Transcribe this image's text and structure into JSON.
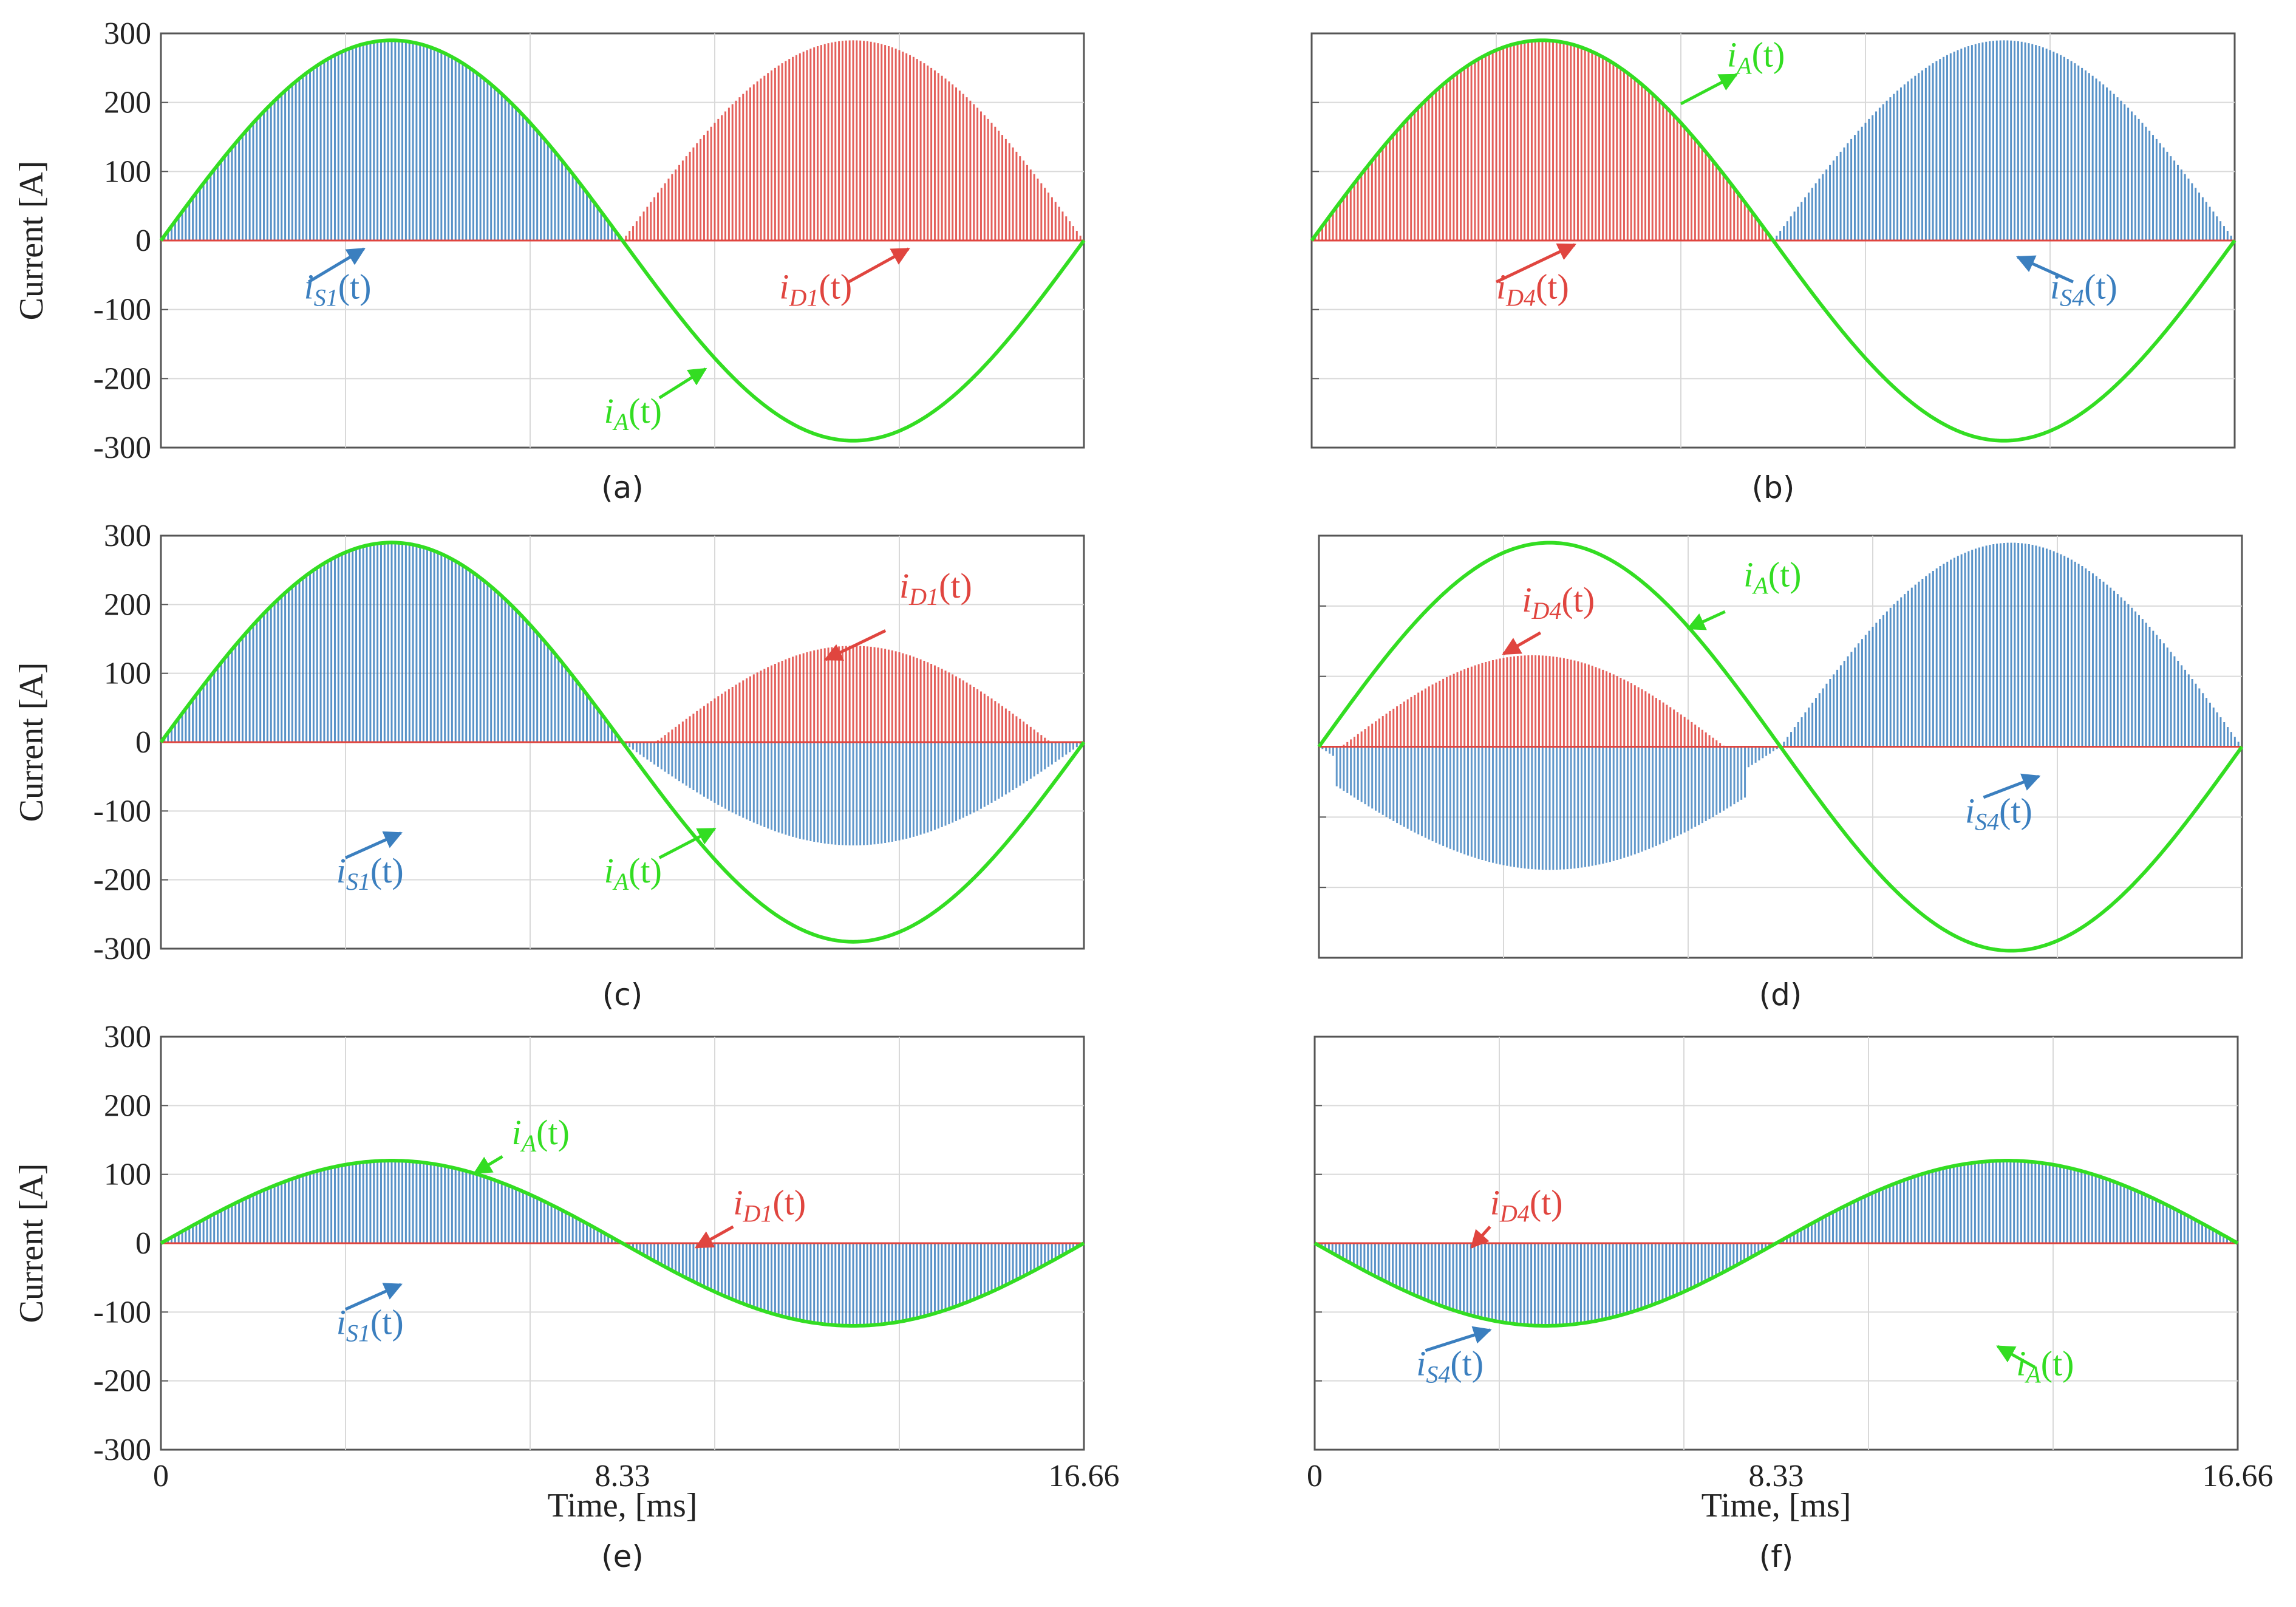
{
  "figure": {
    "x_axis_label": "Time, [ms]",
    "y_axis_label": "Current [A]"
  },
  "colors": {
    "switch_blue": "#3b7fbf",
    "diode_red": "#e0453f",
    "phase_green": "#33dd22",
    "grid": "#d9d9d9",
    "frame": "#555555"
  },
  "chart_data": [
    {
      "id": "a",
      "caption": "(a)",
      "type": "line",
      "title": "",
      "xlabel": "",
      "ylabel": "Current [A]",
      "xlim": [
        0,
        16.66
      ],
      "ylim": [
        -300,
        300
      ],
      "yticks": [
        "300",
        "200",
        "100",
        "0",
        "-100",
        "-200",
        "-300"
      ],
      "xticks": [],
      "peak_phase": 290,
      "peak_pos_region": 290,
      "peak_neg_region": 0,
      "pos_region_label": "S1",
      "pos_region_kind": "switch",
      "neg_region_label": "D1",
      "neg_region_kind": "diode",
      "series": [
        {
          "name": "iA(t)",
          "color": "green",
          "peak": 290
        },
        {
          "name": "iS1(t)",
          "color": "blue",
          "peak": 290
        },
        {
          "name": "iD1(t)",
          "color": "red",
          "peak": 290
        }
      ],
      "annotations": [
        {
          "label": "iS1(t)",
          "main": "i",
          "sub": "S1",
          "tail": "(t)",
          "color": "blue"
        },
        {
          "label": "iD1(t)",
          "main": "i",
          "sub": "D1",
          "tail": "(t)",
          "color": "red"
        },
        {
          "label": "iA(t)",
          "main": "i",
          "sub": "A",
          "tail": "(t)",
          "color": "green"
        }
      ]
    },
    {
      "id": "b",
      "caption": "(b)",
      "type": "line",
      "title": "",
      "xlabel": "",
      "ylabel": "",
      "xlim": [
        0,
        16.66
      ],
      "ylim": [
        -300,
        300
      ],
      "yticks": [],
      "xticks": [],
      "peak_phase": 290,
      "peak_pos_region": 290,
      "peak_neg_region": 0,
      "pos_region_label": "D4",
      "pos_region_kind": "diode",
      "neg_region_label": "S4",
      "neg_region_kind": "switch",
      "series": [
        {
          "name": "iA(t)",
          "color": "green",
          "peak": 290
        },
        {
          "name": "iD4(t)",
          "color": "red",
          "peak": 290
        },
        {
          "name": "iS4(t)",
          "color": "blue",
          "peak": 290
        }
      ],
      "annotations": [
        {
          "label": "iA(t)",
          "main": "i",
          "sub": "A",
          "tail": "(t)",
          "color": "green"
        },
        {
          "label": "iD4(t)",
          "main": "i",
          "sub": "D4",
          "tail": "(t)",
          "color": "red"
        },
        {
          "label": "iS4(t)",
          "main": "i",
          "sub": "S4",
          "tail": "(t)",
          "color": "blue"
        }
      ]
    },
    {
      "id": "c",
      "caption": "(c)",
      "type": "line",
      "title": "",
      "xlabel": "",
      "ylabel": "Current [A]",
      "xlim": [
        0,
        16.66
      ],
      "ylim": [
        -300,
        300
      ],
      "yticks": [
        "300",
        "200",
        "100",
        "0",
        "-100",
        "-200",
        "-300"
      ],
      "xticks": [],
      "peak_phase": 290,
      "peak_pos_region": 140,
      "peak_neg_region": 150,
      "pos_region_label": "S1",
      "pos_region_kind": "switch",
      "neg_region_label": "D1",
      "neg_region_kind": "diode",
      "series": [
        {
          "name": "iA(t)",
          "color": "green",
          "peak": 290
        },
        {
          "name": "iS1(t)",
          "color": "blue",
          "peak": 290
        },
        {
          "name": "iD1(t)",
          "color": "red",
          "peak": 140
        }
      ],
      "annotations": [
        {
          "label": "iD1(t)",
          "main": "i",
          "sub": "D1",
          "tail": "(t)",
          "color": "red"
        },
        {
          "label": "iS1(t)",
          "main": "i",
          "sub": "S1",
          "tail": "(t)",
          "color": "blue"
        },
        {
          "label": "iA(t)",
          "main": "i",
          "sub": "A",
          "tail": "(t)",
          "color": "green"
        }
      ]
    },
    {
      "id": "d",
      "caption": "(d)",
      "type": "line",
      "title": "",
      "xlabel": "",
      "ylabel": "",
      "xlim": [
        0,
        16.66
      ],
      "ylim": [
        -300,
        300
      ],
      "yticks": [],
      "xticks": [],
      "peak_phase": 290,
      "peak_pos_region": 130,
      "peak_neg_region": 150,
      "pos_region_label": "D4",
      "pos_region_kind": "diode",
      "neg_region_label": "S4",
      "neg_region_kind": "switch",
      "series": [
        {
          "name": "iA(t)",
          "color": "green",
          "peak": 290
        },
        {
          "name": "iD4(t)",
          "color": "red",
          "peak": 130
        },
        {
          "name": "iS4(t)",
          "color": "blue",
          "peak": 290
        }
      ],
      "annotations": [
        {
          "label": "iD4(t)",
          "main": "i",
          "sub": "D4",
          "tail": "(t)",
          "color": "red"
        },
        {
          "label": "iA(t)",
          "main": "i",
          "sub": "A",
          "tail": "(t)",
          "color": "green"
        },
        {
          "label": "iS4(t)",
          "main": "i",
          "sub": "S4",
          "tail": "(t)",
          "color": "blue"
        }
      ]
    },
    {
      "id": "e",
      "caption": "(e)",
      "type": "line",
      "title": "",
      "xlabel": "Time, [ms]",
      "ylabel": "Current [A]",
      "xlim": [
        0,
        16.66
      ],
      "ylim": [
        -300,
        300
      ],
      "yticks": [
        "300",
        "200",
        "100",
        "0",
        "-100",
        "-200",
        "-300"
      ],
      "xticks": [
        "0",
        "8.33",
        "16.66"
      ],
      "peak_phase": 120,
      "peak_pos_region": 0,
      "peak_neg_region": 120,
      "pos_region_label": "S1",
      "pos_region_kind": "switch",
      "neg_region_label": "D1",
      "neg_region_kind": "diode",
      "series": [
        {
          "name": "iA(t)",
          "color": "green",
          "peak": 120
        },
        {
          "name": "iS1(t)",
          "color": "blue",
          "peak": 120
        },
        {
          "name": "iD1(t)",
          "color": "red",
          "peak": 0
        }
      ],
      "annotations": [
        {
          "label": "iA(t)",
          "main": "i",
          "sub": "A",
          "tail": "(t)",
          "color": "green"
        },
        {
          "label": "iD1(t)",
          "main": "i",
          "sub": "D1",
          "tail": "(t)",
          "color": "red"
        },
        {
          "label": "iS1(t)",
          "main": "i",
          "sub": "S1",
          "tail": "(t)",
          "color": "blue"
        }
      ]
    },
    {
      "id": "f",
      "caption": "(f)",
      "type": "line",
      "title": "",
      "xlabel": "Time, [ms]",
      "ylabel": "",
      "xlim": [
        0,
        16.66
      ],
      "ylim": [
        -300,
        300
      ],
      "yticks": [],
      "xticks": [
        "0",
        "8.33",
        "16.66"
      ],
      "peak_phase": 120,
      "peak_pos_region": 0,
      "peak_neg_region": 120,
      "pos_region_label": "D4",
      "pos_region_kind": "diode",
      "neg_region_label": "S4",
      "neg_region_kind": "switch",
      "series": [
        {
          "name": "iA(t)",
          "color": "green",
          "peak": 120
        },
        {
          "name": "iD4(t)",
          "color": "red",
          "peak": 0
        },
        {
          "name": "iS4(t)",
          "color": "blue",
          "peak": 120
        }
      ],
      "annotations": [
        {
          "label": "iD4(t)",
          "main": "i",
          "sub": "D4",
          "tail": "(t)",
          "color": "red"
        },
        {
          "label": "iS4(t)",
          "main": "i",
          "sub": "S4",
          "tail": "(t)",
          "color": "blue"
        },
        {
          "label": "iA(t)",
          "main": "i",
          "sub": "A",
          "tail": "(t)",
          "color": "green"
        }
      ]
    }
  ]
}
